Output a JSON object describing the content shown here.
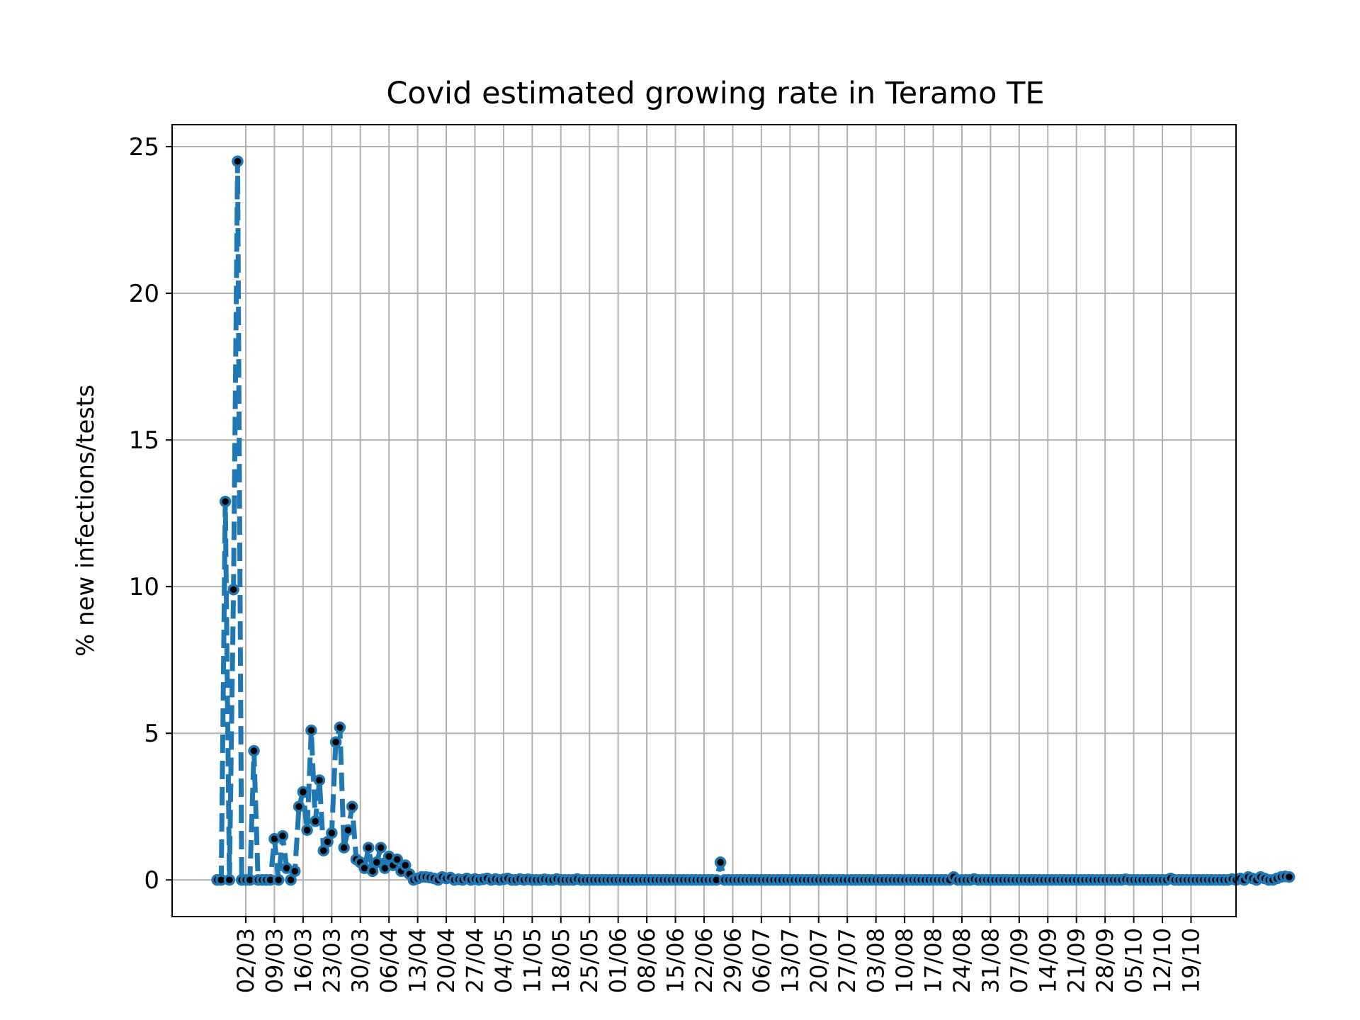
{
  "chart_data": {
    "type": "line",
    "title": "Covid estimated growing rate in Teramo TE",
    "xlabel": "",
    "ylabel": "% new infections/tests",
    "x_ticks": [
      "02/03",
      "09/03",
      "16/03",
      "23/03",
      "30/03",
      "06/04",
      "13/04",
      "20/04",
      "27/04",
      "04/05",
      "11/05",
      "18/05",
      "25/05",
      "01/06",
      "08/06",
      "15/06",
      "22/06",
      "29/06",
      "06/07",
      "13/07",
      "20/07",
      "27/07",
      "03/08",
      "10/08",
      "17/08",
      "24/08",
      "31/08",
      "07/09",
      "14/09",
      "21/09",
      "28/09",
      "05/10",
      "12/10",
      "19/10"
    ],
    "y_ticks": [
      "0",
      "5",
      "10",
      "15",
      "20",
      "25"
    ],
    "ylim": [
      -1.25,
      25.75
    ],
    "xlim": [
      "2020-02-13",
      "2020-10-30"
    ],
    "grid": true,
    "legend": "none",
    "line_style": "dashed",
    "line_color": "#1f77b4",
    "marker_color": "#000000",
    "x_start_date": "2020-02-24",
    "x_end_date": "2020-10-19",
    "values": [
      0,
      0,
      12.9,
      0,
      9.9,
      24.5,
      0,
      0,
      0,
      4.4,
      0,
      0,
      0,
      0,
      1.4,
      0,
      1.5,
      0.4,
      0,
      0.3,
      2.5,
      3.0,
      1.7,
      5.1,
      2.0,
      3.4,
      1.0,
      1.3,
      1.6,
      4.7,
      5.2,
      1.1,
      1.7,
      2.5,
      0.7,
      0.6,
      0.4,
      1.1,
      0.3,
      0.6,
      1.1,
      0.4,
      0.8,
      0.5,
      0.7,
      0.3,
      0.5,
      0.2,
      0,
      0.05,
      0.1,
      0.1,
      0.08,
      0.05,
      0,
      0.1,
      0.05,
      0.08,
      0,
      0.02,
      0,
      0.05,
      0,
      0.03,
      0,
      0.02,
      0.05,
      0,
      0.03,
      0,
      0.02,
      0.05,
      0,
      0,
      0.03,
      0,
      0.02,
      0,
      0,
      0,
      0.02,
      0,
      0,
      0.03,
      0,
      0,
      0,
      0,
      0.03,
      0,
      0,
      0,
      0,
      0,
      0,
      0,
      0,
      0,
      0,
      0,
      0,
      0,
      0,
      0,
      0,
      0,
      0,
      0,
      0,
      0,
      0,
      0,
      0,
      0,
      0,
      0,
      0,
      0,
      0,
      0,
      0,
      0,
      0,
      0.6,
      0,
      0,
      0,
      0,
      0,
      0,
      0,
      0,
      0,
      0,
      0,
      0,
      0,
      0,
      0,
      0,
      0,
      0,
      0,
      0,
      0,
      0,
      0,
      0,
      0,
      0,
      0,
      0,
      0,
      0,
      0,
      0,
      0,
      0,
      0,
      0,
      0,
      0,
      0,
      0,
      0,
      0,
      0,
      0,
      0,
      0,
      0,
      0,
      0,
      0,
      0,
      0,
      0,
      0,
      0,
      0,
      0.1,
      0,
      0,
      0,
      0,
      0.03,
      0,
      0,
      0,
      0,
      0,
      0,
      0,
      0,
      0,
      0,
      0,
      0,
      0,
      0,
      0,
      0,
      0,
      0,
      0,
      0,
      0,
      0,
      0,
      0,
      0,
      0,
      0,
      0,
      0,
      0,
      0,
      0,
      0,
      0,
      0,
      0,
      0.02,
      0,
      0,
      0,
      0,
      0,
      0,
      0,
      0,
      0,
      0,
      0.05,
      0,
      0,
      0,
      0,
      0,
      0,
      0,
      0,
      0,
      0,
      0,
      0,
      0,
      0,
      0.03,
      0,
      0.05,
      0,
      0.1,
      0.05,
      0,
      0.1,
      0.05,
      0,
      0,
      0.05,
      0.1,
      0.12,
      0.1
    ]
  }
}
